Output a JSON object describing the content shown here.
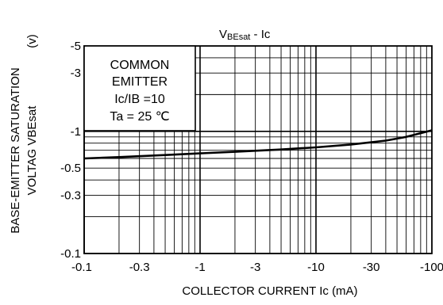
{
  "chart_data": {
    "type": "line",
    "title": "VBEsat - Ic",
    "title_main": "V",
    "title_sub": "BEsat",
    "title_rest": " -  Ic",
    "xlabel": "COLLECTOR CURRENT  Ic   (mA)",
    "ylabel_line1": "BASE-EMITTER SATURATION",
    "ylabel_line2": "VOLTAG VBEsat",
    "y_unit": "(v)",
    "x_scale": "log",
    "y_scale": "log",
    "xlim": [
      -0.1,
      -100
    ],
    "ylim": [
      -0.1,
      -5
    ],
    "x_ticks": [
      "-0.1",
      "-0.3",
      "-1",
      "-3",
      "-10",
      "-30",
      "-100"
    ],
    "x_tick_values": [
      0.1,
      0.3,
      1,
      3,
      10,
      30,
      100
    ],
    "y_ticks": [
      "-0.1",
      "-0.3",
      "-0.5",
      "-1",
      "-3",
      "-5"
    ],
    "y_tick_values": [
      0.1,
      0.3,
      0.5,
      1,
      3,
      5
    ],
    "grid": true,
    "annotation": [
      "COMMON",
      "EMITTER",
      "Ic/IB =10",
      "Ta = 25 ℃"
    ],
    "series": [
      {
        "x": [
          -0.1,
          -0.2,
          -0.5,
          -1,
          -2,
          -5,
          -10,
          -20,
          -40,
          -60,
          -100
        ],
        "y": [
          -0.6,
          -0.615,
          -0.64,
          -0.66,
          -0.68,
          -0.71,
          -0.74,
          -0.78,
          -0.84,
          -0.9,
          -1.02
        ]
      }
    ]
  }
}
